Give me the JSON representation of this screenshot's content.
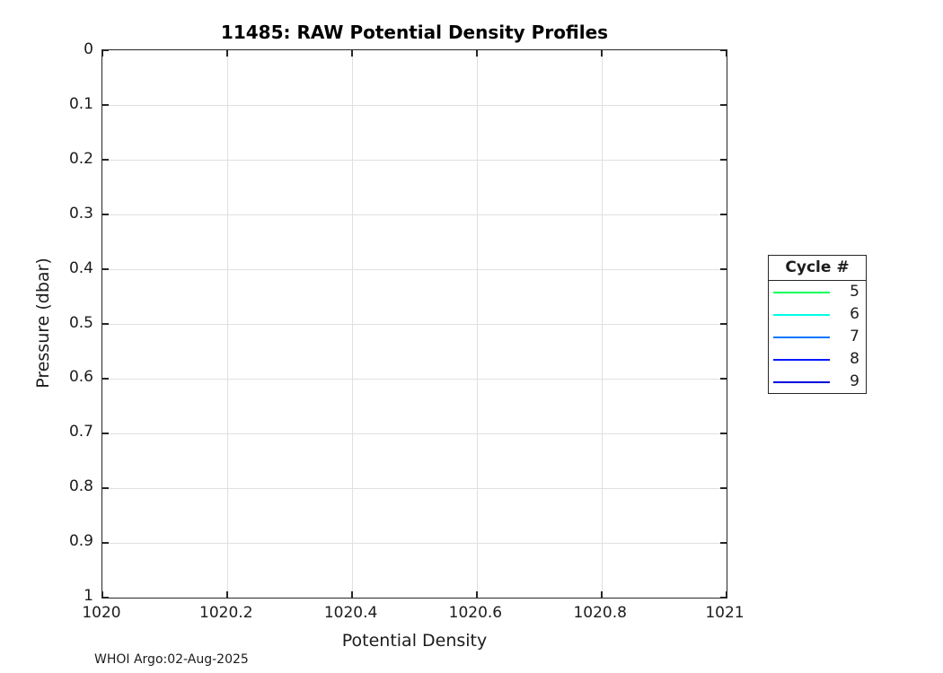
{
  "figure": {
    "title": "11485: RAW Potential Density Profiles",
    "footer": "WHOI Argo:02-Aug-2025"
  },
  "axes": {
    "x": {
      "label": "Potential Density",
      "ticks": [
        "1020",
        "1020.2",
        "1020.4",
        "1020.6",
        "1020.8",
        "1021"
      ]
    },
    "y": {
      "label": "Pressure (dbar)",
      "ticks": [
        "0",
        "0.1",
        "0.2",
        "0.3",
        "0.4",
        "0.5",
        "0.6",
        "0.7",
        "0.8",
        "0.9",
        "1"
      ]
    }
  },
  "legend": {
    "title": "Cycle #",
    "entries": [
      {
        "label": "5",
        "color": "#00ff59"
      },
      {
        "label": "6",
        "color": "#00ffe6"
      },
      {
        "label": "7",
        "color": "#0077ff"
      },
      {
        "label": "8",
        "color": "#0019ff"
      },
      {
        "label": "9",
        "color": "#0000dd"
      }
    ]
  },
  "chart_data": {
    "type": "line",
    "title": "11485: RAW Potential Density Profiles",
    "xlabel": "Potential Density",
    "ylabel": "Pressure (dbar)",
    "xlim": [
      1020,
      1021
    ],
    "ylim": [
      0,
      1
    ],
    "y_axis_direction": "reversed",
    "grid": true,
    "legend_position": "outside-right",
    "legend_title": "Cycle #",
    "series": [
      {
        "name": "5",
        "color": "#00ff59",
        "x": [],
        "y": []
      },
      {
        "name": "6",
        "color": "#00ffe6",
        "x": [],
        "y": []
      },
      {
        "name": "7",
        "color": "#0077ff",
        "x": [],
        "y": []
      },
      {
        "name": "8",
        "color": "#0019ff",
        "x": [],
        "y": []
      },
      {
        "name": "9",
        "color": "#0000dd",
        "x": [],
        "y": []
      }
    ],
    "annotations": [
      "WHOI Argo:02-Aug-2025"
    ]
  }
}
